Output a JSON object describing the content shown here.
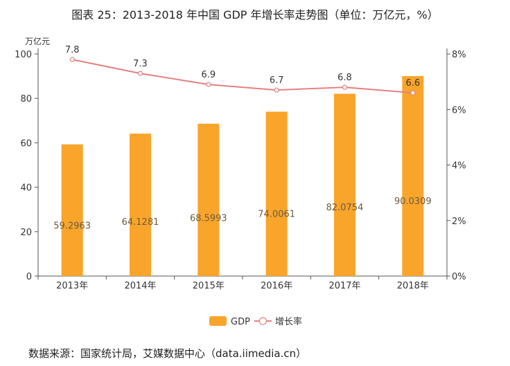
{
  "title": "图表 25：2013-2018 年中国 GDP 年增长率走势图（单位：万亿元，%）",
  "source": "数据来源：国家统计局，艾媒数据中心（data.iimedia.cn）",
  "chart_data": {
    "type": "bar",
    "categories": [
      "2013年",
      "2014年",
      "2015年",
      "2016年",
      "2017年",
      "2018年"
    ],
    "series": [
      {
        "name": "GDP",
        "type": "bar",
        "axis": "left",
        "color": "#f9a52b",
        "values": [
          59.2963,
          64.1281,
          68.5993,
          74.0061,
          82.0754,
          90.0309
        ],
        "labels": [
          "59.2963",
          "64.1281",
          "68.5993",
          "74.0061",
          "82.0754",
          "90.0309"
        ]
      },
      {
        "name": "增长率",
        "type": "line",
        "axis": "right",
        "color": "#e57f7f",
        "values": [
          7.8,
          7.3,
          6.9,
          6.7,
          6.8,
          6.6
        ],
        "labels": [
          "7.8",
          "7.3",
          "6.9",
          "6.7",
          "6.8",
          "6.6"
        ]
      }
    ],
    "left_axis": {
      "unit": "万亿元",
      "ylim": [
        0,
        100
      ],
      "ticks": [
        "0",
        "20",
        "40",
        "60",
        "80",
        "100"
      ]
    },
    "right_axis": {
      "ylim": [
        0,
        8
      ],
      "ticks": [
        "0%",
        "2%",
        "4%",
        "6%",
        "8%"
      ]
    },
    "grid": false,
    "legend_position": "bottom"
  }
}
